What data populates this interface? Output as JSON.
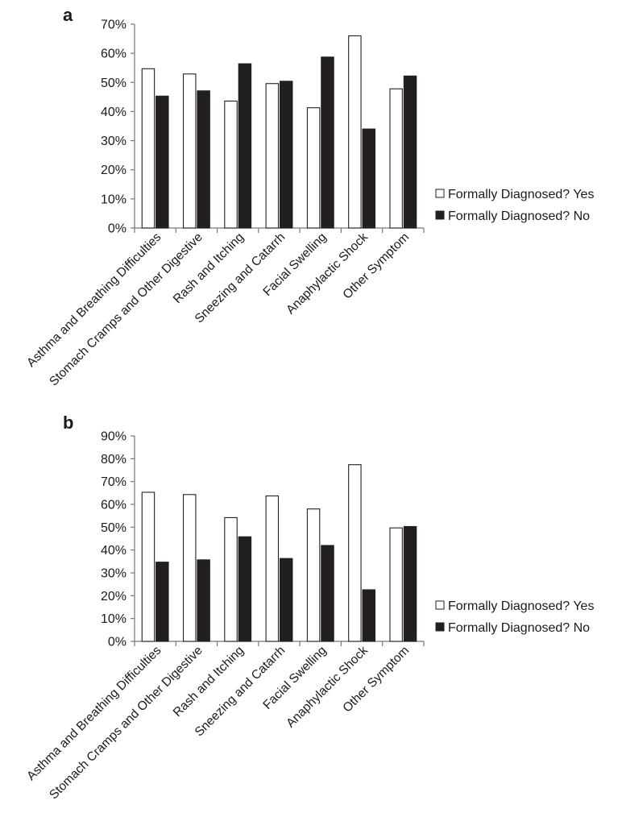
{
  "chart_data": [
    {
      "panel": "a",
      "type": "bar",
      "categories": [
        "Asthma and Breathing Difficulties",
        "Stomach Cramps and Other Digestive",
        "Rash and Itching",
        "Sneezing and Catarrh",
        "Facial Swelling",
        "Anaphylactic Shock",
        "Other Symptom"
      ],
      "series": [
        {
          "name": "Formally Diagnosed? Yes",
          "color": "#ffffff",
          "values": [
            54.7,
            52.9,
            43.6,
            49.6,
            41.3,
            66.0,
            47.8
          ]
        },
        {
          "name": "Formally Diagnosed? No",
          "color": "#231f20",
          "values": [
            45.3,
            47.1,
            56.4,
            50.4,
            58.7,
            34.0,
            52.2
          ]
        }
      ],
      "ylim": [
        0,
        70
      ],
      "yticks": [
        "0%",
        "10%",
        "20%",
        "30%",
        "40%",
        "50%",
        "60%",
        "70%"
      ],
      "legend": "right",
      "grid": false
    },
    {
      "panel": "b",
      "type": "bar",
      "categories": [
        "Asthma and Breathing Difficulties",
        "Stomach Cramps and Other Digestive",
        "Rash and Itching",
        "Sneezing and Catarrh",
        "Facial Swelling",
        "Anaphylactic Shock",
        "Other Symptom"
      ],
      "series": [
        {
          "name": "Formally Diagnosed? Yes",
          "color": "#ffffff",
          "values": [
            65.3,
            64.3,
            54.2,
            63.7,
            58.0,
            77.4,
            49.7
          ]
        },
        {
          "name": "Formally Diagnosed? No",
          "color": "#231f20",
          "values": [
            34.7,
            35.7,
            45.8,
            36.3,
            42.0,
            22.6,
            50.3
          ]
        }
      ],
      "ylim": [
        0,
        90
      ],
      "yticks": [
        "0%",
        "10%",
        "20%",
        "30%",
        "40%",
        "50%",
        "60%",
        "70%",
        "80%",
        "90%"
      ],
      "legend": "right",
      "grid": false
    }
  ]
}
